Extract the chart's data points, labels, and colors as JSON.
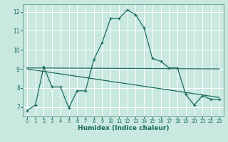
{
  "xlabel": "Humidex (Indice chaleur)",
  "bg_color": "#c8e8e0",
  "line_color": "#1a6b5a",
  "grid_color": "#ffffff",
  "xlim": [
    -0.5,
    23.5
  ],
  "ylim": [
    6.5,
    12.4
  ],
  "xticks": [
    0,
    1,
    2,
    3,
    4,
    5,
    6,
    7,
    8,
    9,
    10,
    11,
    12,
    13,
    14,
    15,
    16,
    17,
    18,
    19,
    20,
    21,
    22,
    23
  ],
  "yticks": [
    7,
    8,
    9,
    10,
    11,
    12
  ],
  "line1_x": [
    0,
    1,
    2,
    3,
    4,
    5,
    6,
    7,
    8,
    9,
    10,
    11,
    12,
    13,
    14,
    15,
    16,
    17,
    18,
    19,
    20,
    21,
    22,
    23
  ],
  "line1_y": [
    6.8,
    7.1,
    9.1,
    8.05,
    8.05,
    6.95,
    7.85,
    7.85,
    9.5,
    10.4,
    11.65,
    11.65,
    12.1,
    11.85,
    11.15,
    9.55,
    9.4,
    9.05,
    9.05,
    7.65,
    7.1,
    7.6,
    7.4,
    7.4
  ],
  "line2_x": [
    0,
    23
  ],
  "line2_y": [
    9.05,
    9.0
  ],
  "line3_x": [
    0,
    23
  ],
  "line3_y": [
    9.0,
    7.5
  ]
}
